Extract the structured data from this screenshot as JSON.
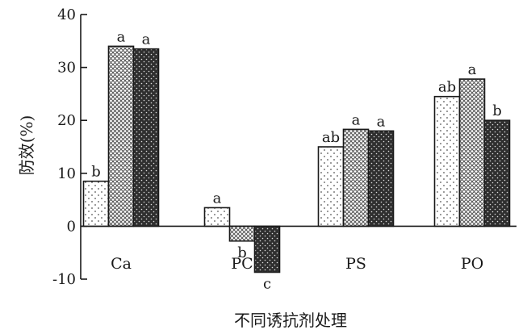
{
  "chart_data": {
    "type": "bar",
    "title": "",
    "xlabel": "不同诱抗剂处理",
    "ylabel": "防效(%)",
    "ylim": [
      -10,
      40
    ],
    "yticks": [
      -10,
      0,
      10,
      20,
      30,
      40
    ],
    "grid": false,
    "legend": "none",
    "categories": [
      "Ca",
      "PC",
      "PS",
      "PO"
    ],
    "series": [
      {
        "pattern": "sparse-dots",
        "fill": "#ffffff",
        "values": [
          8.5,
          3.5,
          15.0,
          24.5
        ],
        "labels": [
          "b",
          "a",
          "ab",
          "ab"
        ]
      },
      {
        "pattern": "crosshatch",
        "fill": "#bfbfbf",
        "values": [
          34.0,
          -2.8,
          18.3,
          27.8
        ],
        "labels": [
          "a",
          "b",
          "a",
          "a"
        ]
      },
      {
        "pattern": "dense-dark-dots",
        "fill": "#333333",
        "values": [
          33.5,
          -8.7,
          18.0,
          20.0
        ],
        "labels": [
          "a",
          "c",
          "a",
          "b"
        ]
      }
    ]
  }
}
